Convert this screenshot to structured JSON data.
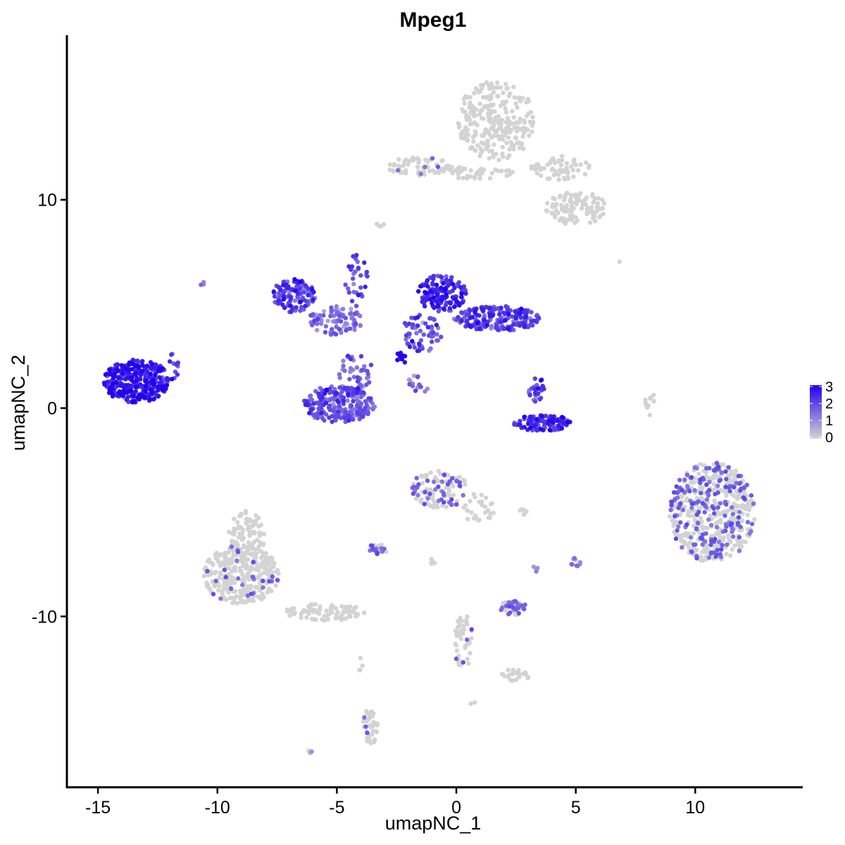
{
  "chart_data": {
    "type": "scatter",
    "title": "Mpeg1",
    "xlabel": "umapNC_1",
    "ylabel": "umapNC_2",
    "xlim": [
      -16.3,
      14.5
    ],
    "ylim": [
      -18.2,
      17.9
    ],
    "xticks": [
      -15,
      -10,
      -5,
      0,
      5,
      10
    ],
    "xtick_labels": [
      "-15",
      "-10",
      "-5",
      "0",
      "5",
      "10"
    ],
    "yticks": [
      -10,
      0,
      10
    ],
    "ytick_labels": [
      "-10",
      "0",
      "10"
    ],
    "grid": false,
    "legend": {
      "position": "right",
      "type": "colorbar",
      "values": [
        0,
        1,
        2,
        3
      ],
      "labels": [
        "0",
        "1",
        "2",
        "3"
      ],
      "low_color": "#d3d3d3",
      "high_color": "#2200ee"
    },
    "clusters": [
      {
        "cx": 1.7,
        "cy": 13.8,
        "rx": 1.7,
        "ry": 1.9,
        "n": 260,
        "expr": 0.0
      },
      {
        "cx": -1.5,
        "cy": 11.6,
        "rx": 1.4,
        "ry": 0.45,
        "n": 70,
        "expr": 0.05
      },
      {
        "cx": 0.8,
        "cy": 11.3,
        "rx": 1.6,
        "ry": 0.3,
        "n": 45,
        "expr": 0.0
      },
      {
        "cx": 4.3,
        "cy": 11.5,
        "rx": 1.3,
        "ry": 0.6,
        "n": 60,
        "expr": 0.02
      },
      {
        "cx": 5.0,
        "cy": 9.6,
        "rx": 1.3,
        "ry": 0.8,
        "n": 110,
        "expr": 0.0
      },
      {
        "cx": -3.2,
        "cy": 8.8,
        "rx": 0.2,
        "ry": 0.2,
        "n": 4,
        "expr": 0.0
      },
      {
        "cx": -13.4,
        "cy": 1.3,
        "rx": 1.4,
        "ry": 1.05,
        "n": 330,
        "expr": 2.5
      },
      {
        "cx": -12.0,
        "cy": 2.0,
        "rx": 0.4,
        "ry": 0.9,
        "n": 18,
        "expr": 2.0
      },
      {
        "cx": -10.6,
        "cy": 6.0,
        "rx": 0.15,
        "ry": 0.15,
        "n": 3,
        "expr": 1.2
      },
      {
        "cx": -6.8,
        "cy": 5.4,
        "rx": 0.9,
        "ry": 0.8,
        "n": 110,
        "expr": 2.0
      },
      {
        "cx": -5.0,
        "cy": 4.2,
        "rx": 1.2,
        "ry": 0.7,
        "n": 80,
        "expr": 1.4
      },
      {
        "cx": -4.9,
        "cy": 0.2,
        "rx": 1.5,
        "ry": 0.9,
        "n": 240,
        "expr": 1.7
      },
      {
        "cx": -4.2,
        "cy": 1.7,
        "rx": 0.7,
        "ry": 1.0,
        "n": 45,
        "expr": 1.6
      },
      {
        "cx": -4.2,
        "cy": 6.2,
        "rx": 0.5,
        "ry": 1.3,
        "n": 30,
        "expr": 1.8
      },
      {
        "cx": -0.6,
        "cy": 5.5,
        "rx": 1.0,
        "ry": 0.9,
        "n": 160,
        "expr": 2.3
      },
      {
        "cx": 1.7,
        "cy": 4.3,
        "rx": 1.8,
        "ry": 0.6,
        "n": 190,
        "expr": 2.0
      },
      {
        "cx": -1.4,
        "cy": 3.6,
        "rx": 0.9,
        "ry": 0.9,
        "n": 60,
        "expr": 1.8
      },
      {
        "cx": -2.3,
        "cy": 2.4,
        "rx": 0.2,
        "ry": 0.4,
        "n": 10,
        "expr": 3.0
      },
      {
        "cx": -1.7,
        "cy": 1.1,
        "rx": 0.6,
        "ry": 0.5,
        "n": 14,
        "expr": 1.4
      },
      {
        "cx": 3.6,
        "cy": -0.7,
        "rx": 1.2,
        "ry": 0.4,
        "n": 120,
        "expr": 2.2
      },
      {
        "cx": 3.4,
        "cy": 0.9,
        "rx": 0.4,
        "ry": 0.6,
        "n": 30,
        "expr": 2.0
      },
      {
        "cx": 8.1,
        "cy": 0.3,
        "rx": 0.2,
        "ry": 0.7,
        "n": 12,
        "expr": 0.0
      },
      {
        "cx": 10.7,
        "cy": -5.0,
        "rx": 1.8,
        "ry": 2.4,
        "n": 520,
        "expr": 0.35
      },
      {
        "cx": -0.7,
        "cy": -3.9,
        "rx": 1.2,
        "ry": 0.9,
        "n": 110,
        "expr": 0.3
      },
      {
        "cx": 0.9,
        "cy": -4.8,
        "rx": 0.7,
        "ry": 0.7,
        "n": 30,
        "expr": 0.0
      },
      {
        "cx": -9.0,
        "cy": -8.0,
        "rx": 1.6,
        "ry": 1.4,
        "n": 300,
        "expr": 0.08
      },
      {
        "cx": -8.8,
        "cy": -6.2,
        "rx": 0.8,
        "ry": 1.3,
        "n": 100,
        "expr": 0.0
      },
      {
        "cx": -5.5,
        "cy": -9.8,
        "rx": 1.7,
        "ry": 0.4,
        "n": 80,
        "expr": 0.0
      },
      {
        "cx": -3.3,
        "cy": -6.8,
        "rx": 0.4,
        "ry": 0.3,
        "n": 25,
        "expr": 0.4
      },
      {
        "cx": 2.4,
        "cy": -9.6,
        "rx": 0.6,
        "ry": 0.35,
        "n": 45,
        "expr": 0.5
      },
      {
        "cx": 0.3,
        "cy": -11.2,
        "rx": 0.4,
        "ry": 1.3,
        "n": 45,
        "expr": 0.05
      },
      {
        "cx": 2.5,
        "cy": -12.8,
        "rx": 0.6,
        "ry": 0.3,
        "n": 25,
        "expr": 0.0
      },
      {
        "cx": -3.6,
        "cy": -15.3,
        "rx": 0.3,
        "ry": 0.9,
        "n": 40,
        "expr": 0.2
      },
      {
        "cx": 5.0,
        "cy": -7.4,
        "rx": 0.2,
        "ry": 0.25,
        "n": 10,
        "expr": 1.0
      },
      {
        "cx": 2.8,
        "cy": -5.0,
        "rx": 0.2,
        "ry": 0.15,
        "n": 6,
        "expr": 0.0
      },
      {
        "cx": -1.0,
        "cy": -7.3,
        "rx": 0.15,
        "ry": 0.2,
        "n": 5,
        "expr": 0.0
      },
      {
        "cx": 3.3,
        "cy": -7.7,
        "rx": 0.15,
        "ry": 0.15,
        "n": 4,
        "expr": 0.7
      },
      {
        "cx": -6.1,
        "cy": -16.5,
        "rx": 0.12,
        "ry": 0.12,
        "n": 3,
        "expr": 0.6
      },
      {
        "cx": -4.0,
        "cy": -12.3,
        "rx": 0.1,
        "ry": 0.4,
        "n": 4,
        "expr": 0.0
      },
      {
        "cx": 0.7,
        "cy": -14.2,
        "rx": 0.1,
        "ry": 0.1,
        "n": 2,
        "expr": 0.0
      },
      {
        "cx": 6.8,
        "cy": 7.0,
        "rx": 0.05,
        "ry": 0.05,
        "n": 1,
        "expr": 0.0
      }
    ]
  }
}
